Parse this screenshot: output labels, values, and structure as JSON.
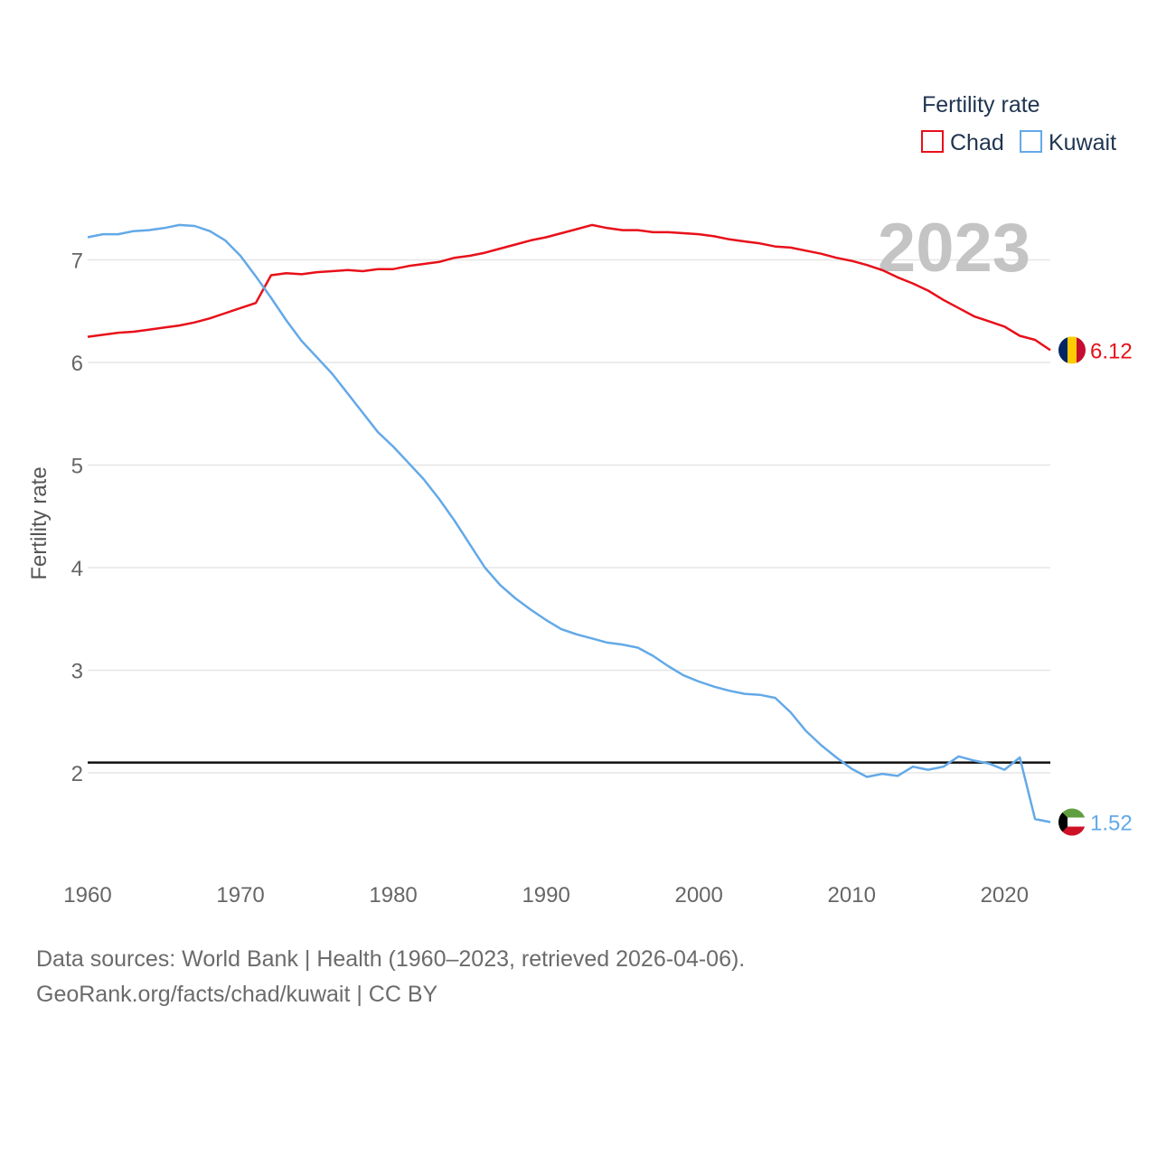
{
  "chart_data": {
    "type": "line",
    "title": "",
    "ylabel": "Fertility rate",
    "xlabel": "",
    "year_label": "2023",
    "xlim": [
      1960,
      2023
    ],
    "ylim": [
      1.3,
      7.6
    ],
    "xticks": [
      1960,
      1970,
      1980,
      1990,
      2000,
      2010,
      2020
    ],
    "yticks": [
      2,
      3,
      4,
      5,
      6,
      7
    ],
    "grid": true,
    "reference_line": 2.1,
    "legend": {
      "title": "Fertility rate",
      "placement": "top-right"
    },
    "x": [
      1960,
      1961,
      1962,
      1963,
      1964,
      1965,
      1966,
      1967,
      1968,
      1969,
      1970,
      1971,
      1972,
      1973,
      1974,
      1975,
      1976,
      1977,
      1978,
      1979,
      1980,
      1981,
      1982,
      1983,
      1984,
      1985,
      1986,
      1987,
      1988,
      1989,
      1990,
      1991,
      1992,
      1993,
      1994,
      1995,
      1996,
      1997,
      1998,
      1999,
      2000,
      2001,
      2002,
      2003,
      2004,
      2005,
      2006,
      2007,
      2008,
      2009,
      2010,
      2011,
      2012,
      2013,
      2014,
      2015,
      2016,
      2017,
      2018,
      2019,
      2020,
      2021,
      2022,
      2023
    ],
    "series": [
      {
        "name": "Chad",
        "color": "#e8101a",
        "end_label": "6.12",
        "values": [
          6.25,
          6.27,
          6.29,
          6.3,
          6.32,
          6.34,
          6.36,
          6.39,
          6.43,
          6.48,
          6.53,
          6.58,
          6.85,
          6.87,
          6.86,
          6.88,
          6.89,
          6.9,
          6.89,
          6.91,
          6.91,
          6.94,
          6.96,
          6.98,
          7.02,
          7.04,
          7.07,
          7.11,
          7.15,
          7.19,
          7.22,
          7.26,
          7.3,
          7.34,
          7.31,
          7.29,
          7.29,
          7.27,
          7.27,
          7.26,
          7.25,
          7.23,
          7.2,
          7.18,
          7.16,
          7.13,
          7.12,
          7.09,
          7.06,
          7.02,
          6.99,
          6.95,
          6.9,
          6.83,
          6.77,
          6.7,
          6.61,
          6.53,
          6.45,
          6.4,
          6.35,
          6.26,
          6.22,
          6.12
        ]
      },
      {
        "name": "Kuwait",
        "color": "#63a9e8",
        "end_label": "1.52",
        "values": [
          7.22,
          7.25,
          7.25,
          7.28,
          7.29,
          7.31,
          7.34,
          7.33,
          7.28,
          7.19,
          7.04,
          6.84,
          6.63,
          6.41,
          6.21,
          6.05,
          5.89,
          5.7,
          5.51,
          5.32,
          5.18,
          5.02,
          4.86,
          4.67,
          4.46,
          4.23,
          4.0,
          3.83,
          3.7,
          3.59,
          3.49,
          3.4,
          3.35,
          3.31,
          3.27,
          3.25,
          3.22,
          3.14,
          3.04,
          2.95,
          2.89,
          2.84,
          2.8,
          2.77,
          2.76,
          2.73,
          2.59,
          2.41,
          2.27,
          2.15,
          2.04,
          1.96,
          1.99,
          1.97,
          2.06,
          2.03,
          2.06,
          2.16,
          2.12,
          2.09,
          2.03,
          2.15,
          1.55,
          1.52
        ]
      }
    ]
  },
  "footer": {
    "line1": "Data sources: World Bank | Health (1960–2023, retrieved 2026-04-06).",
    "line2": "GeoRank.org/facts/chad/kuwait | CC BY"
  },
  "colors": {
    "grid": "#e6e6e6",
    "axis_text": "#666666",
    "legend_text": "#1f3550",
    "year_label": "#c4c4c4",
    "reference_line": "#111111"
  }
}
